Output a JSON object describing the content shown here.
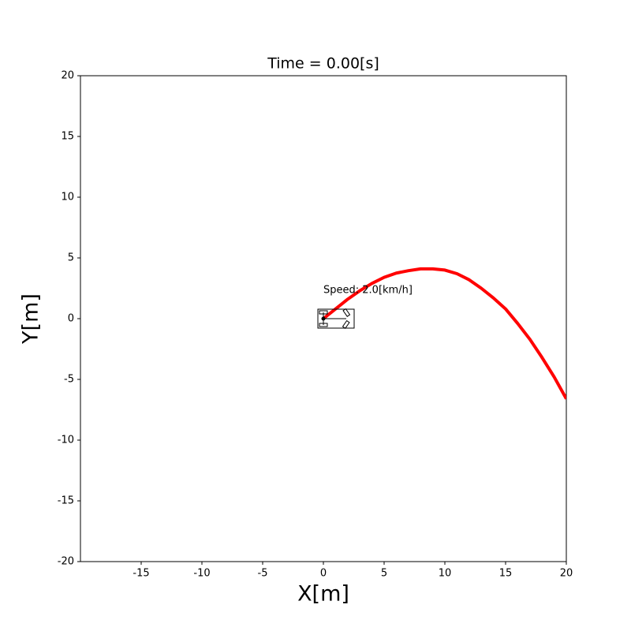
{
  "chart_data": {
    "type": "line",
    "title": "Time = 0.00[s]",
    "x_label": "X[m]",
    "y_label": "Y[m]",
    "annotation": "Speed: 2.0[km/h]",
    "x": [
      0,
      1,
      2,
      3,
      4,
      5,
      6,
      7,
      8,
      9,
      10,
      11,
      12,
      13,
      14,
      15,
      16,
      17,
      18,
      19,
      20
    ],
    "values": [
      0,
      0.8,
      1.6,
      2.3,
      2.9,
      3.4,
      3.75,
      3.95,
      4.1,
      4.1,
      4.0,
      3.7,
      3.2,
      2.5,
      1.7,
      0.8,
      -0.4,
      -1.7,
      -3.2,
      -4.8,
      -6.6
    ],
    "color": "#ff0000",
    "xlim": [
      -20,
      20
    ],
    "xticks": [
      -15,
      -10,
      -5,
      0,
      5,
      10,
      15,
      20
    ],
    "ylim": [
      -20,
      20
    ],
    "yticks": [
      -20,
      -15,
      -10,
      -5,
      0,
      5,
      10,
      15,
      20
    ]
  }
}
